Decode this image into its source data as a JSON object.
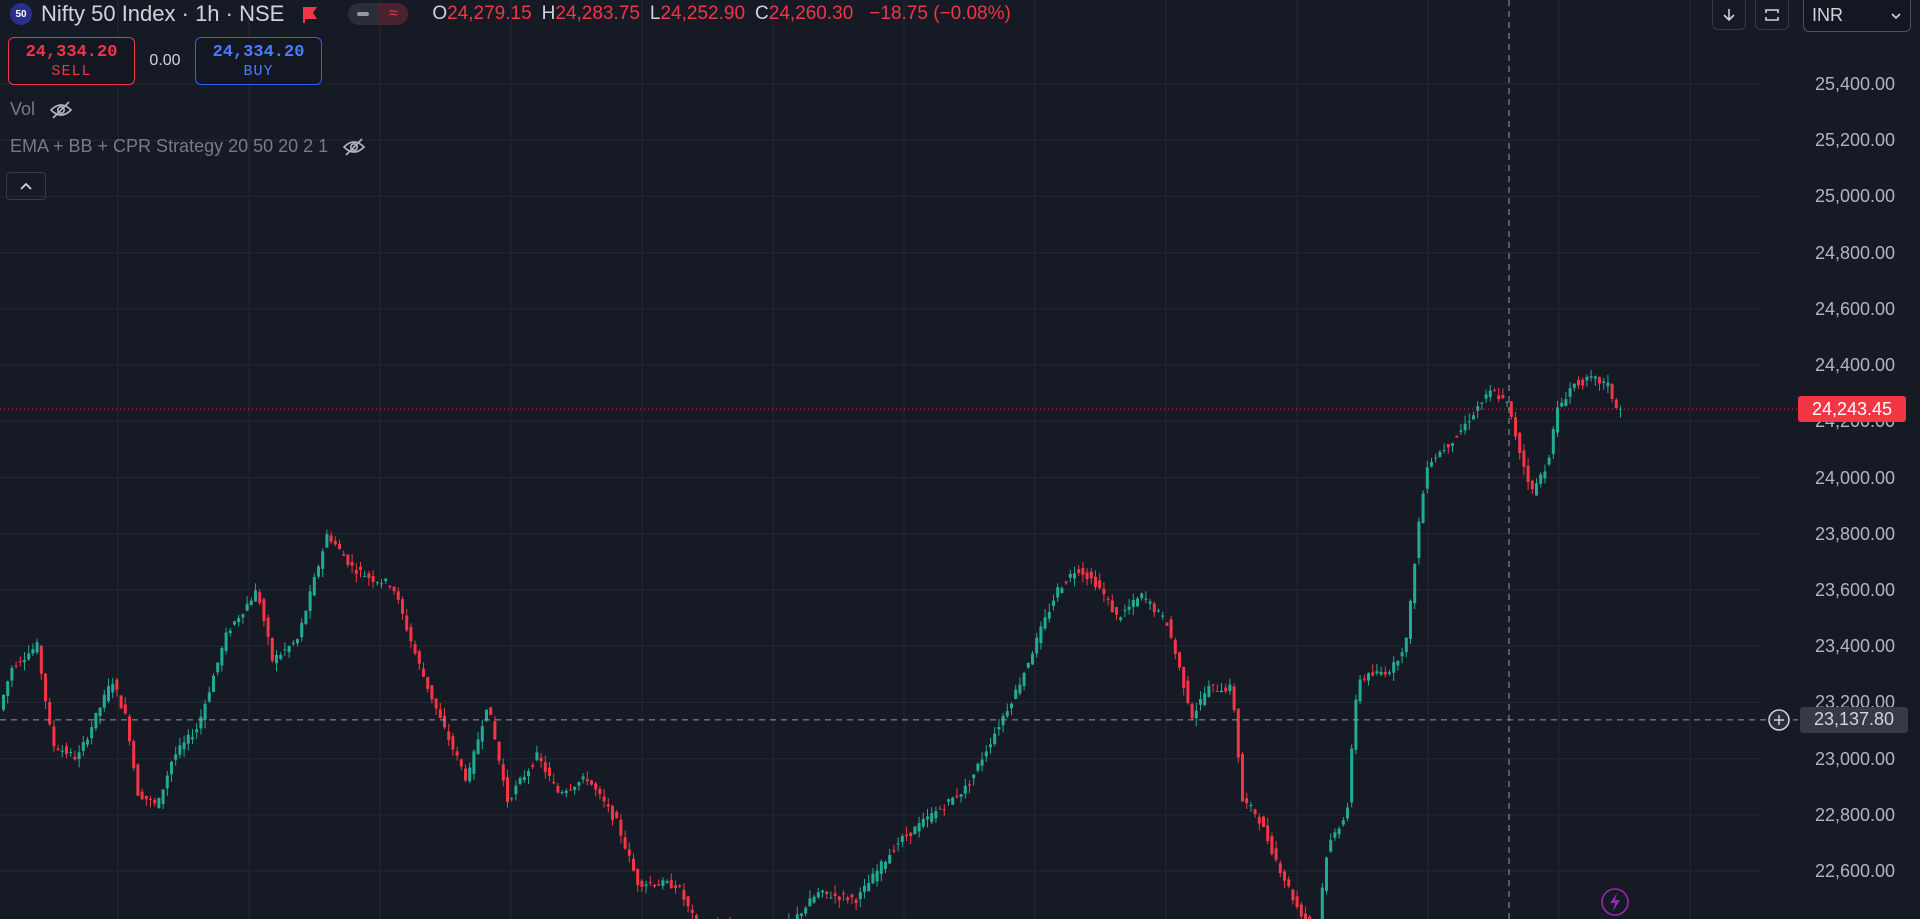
{
  "header": {
    "symbol_badge": "50",
    "title": "Nifty 50 Index · 1h · NSE",
    "ohlc": {
      "o_label": "O",
      "o": "24,279.15",
      "h_label": "H",
      "h": "24,283.75",
      "l_label": "L",
      "l": "24,252.90",
      "c_label": "C",
      "c": "24,260.30",
      "change": "−18.75 (−0.08%)"
    },
    "pill_right": "≈"
  },
  "trade": {
    "sell_price": "24,334.20",
    "sell_label": "SELL",
    "spread": "0.00",
    "buy_price": "24,334.20",
    "buy_label": "BUY"
  },
  "studies": {
    "vol": "Vol",
    "strategy": "EMA + BB + CPR Strategy 20 50 20 2 1"
  },
  "currency": {
    "value": "INR"
  },
  "price_axis": {
    "last_price": "24,243.45",
    "crosshair_price": "23,137.80"
  },
  "colors": {
    "up": "#22ab94",
    "down": "#f23645",
    "background": "#161a25",
    "grid": "#242833",
    "buy_border": "#2962ff"
  },
  "icons": {
    "badge": "nifty-50-badge-icon",
    "flag": "flag-icon",
    "eye": "eye-hidden-icon",
    "collapse": "chevron-up-icon",
    "download": "arrow-down-icon",
    "refresh": "refresh-icon",
    "add": "plus-circle-icon",
    "flash": "lightning-icon"
  },
  "chart_data": {
    "type": "candlestick",
    "ylim": [
      22400,
      25600
    ],
    "y_ticks": [
      "22,600.00",
      "22,800.00",
      "23,000.00",
      "23,200.00",
      "23,400.00",
      "23,600.00",
      "23,800.00",
      "24,000.00",
      "24,200.00",
      "24,400.00",
      "24,600.00",
      "24,800.00",
      "25,000.00",
      "25,200.00",
      "25,400.00"
    ],
    "last_price": 24243.45,
    "crosshair_price": 23137.8,
    "path": [
      [
        0,
        23150
      ],
      [
        15,
        23330
      ],
      [
        40,
        23400
      ],
      [
        55,
        23050
      ],
      [
        80,
        23000
      ],
      [
        115,
        23280
      ],
      [
        130,
        23130
      ],
      [
        140,
        22880
      ],
      [
        160,
        22830
      ],
      [
        175,
        23000
      ],
      [
        200,
        23110
      ],
      [
        230,
        23450
      ],
      [
        260,
        23600
      ],
      [
        275,
        23350
      ],
      [
        300,
        23420
      ],
      [
        330,
        23800
      ],
      [
        355,
        23680
      ],
      [
        375,
        23640
      ],
      [
        395,
        23620
      ],
      [
        420,
        23350
      ],
      [
        445,
        23120
      ],
      [
        470,
        22920
      ],
      [
        490,
        23200
      ],
      [
        510,
        22850
      ],
      [
        540,
        23010
      ],
      [
        560,
        22880
      ],
      [
        590,
        22930
      ],
      [
        620,
        22770
      ],
      [
        640,
        22560
      ],
      [
        680,
        22550
      ],
      [
        700,
        22400
      ],
      [
        790,
        22400
      ],
      [
        820,
        22520
      ],
      [
        860,
        22500
      ],
      [
        900,
        22700
      ],
      [
        970,
        22900
      ],
      [
        1020,
        23250
      ],
      [
        1060,
        23600
      ],
      [
        1080,
        23680
      ],
      [
        1100,
        23620
      ],
      [
        1120,
        23500
      ],
      [
        1145,
        23580
      ],
      [
        1170,
        23480
      ],
      [
        1195,
        23150
      ],
      [
        1210,
        23250
      ],
      [
        1235,
        23250
      ],
      [
        1245,
        22850
      ],
      [
        1260,
        22800
      ],
      [
        1280,
        22630
      ],
      [
        1300,
        22470
      ],
      [
        1310,
        22420
      ],
      [
        1320,
        22400
      ],
      [
        1330,
        22680
      ],
      [
        1350,
        22820
      ],
      [
        1360,
        23280
      ],
      [
        1395,
        23320
      ],
      [
        1410,
        23430
      ],
      [
        1420,
        23800
      ],
      [
        1430,
        24050
      ],
      [
        1460,
        24150
      ],
      [
        1480,
        24250
      ],
      [
        1495,
        24310
      ],
      [
        1510,
        24260
      ],
      [
        1525,
        24060
      ],
      [
        1535,
        23950
      ],
      [
        1550,
        24050
      ],
      [
        1560,
        24240
      ],
      [
        1575,
        24330
      ],
      [
        1595,
        24350
      ],
      [
        1610,
        24330
      ],
      [
        1620,
        24240
      ]
    ]
  }
}
